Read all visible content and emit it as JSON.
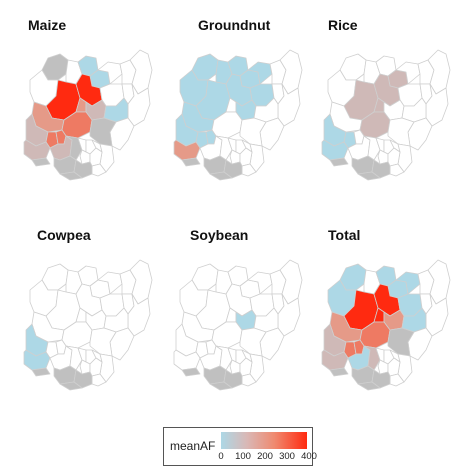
{
  "panels": [
    {
      "id": "maize",
      "title": "Maize"
    },
    {
      "id": "groundnut",
      "title": "Groundnut"
    },
    {
      "id": "rice",
      "title": "Rice"
    },
    {
      "id": "cowpea",
      "title": "Cowpea"
    },
    {
      "id": "soybean",
      "title": "Soybean"
    },
    {
      "id": "total",
      "title": "Total"
    }
  ],
  "legend": {
    "title": "meanAF",
    "ticks": [
      "0",
      "100",
      "200",
      "300",
      "400"
    ],
    "low_color": "#add8e6",
    "high_color": "#ff2a10"
  },
  "colors": {
    "outline": "#cfcfcf",
    "no_data": "#ffffff",
    "zero": "#c0c0c0",
    "low": "#add8e6",
    "mid_low": "#cfb9b7",
    "mid": "#e59a88",
    "mid_high": "#ee7a63",
    "high": "#ff2a10"
  }
}
